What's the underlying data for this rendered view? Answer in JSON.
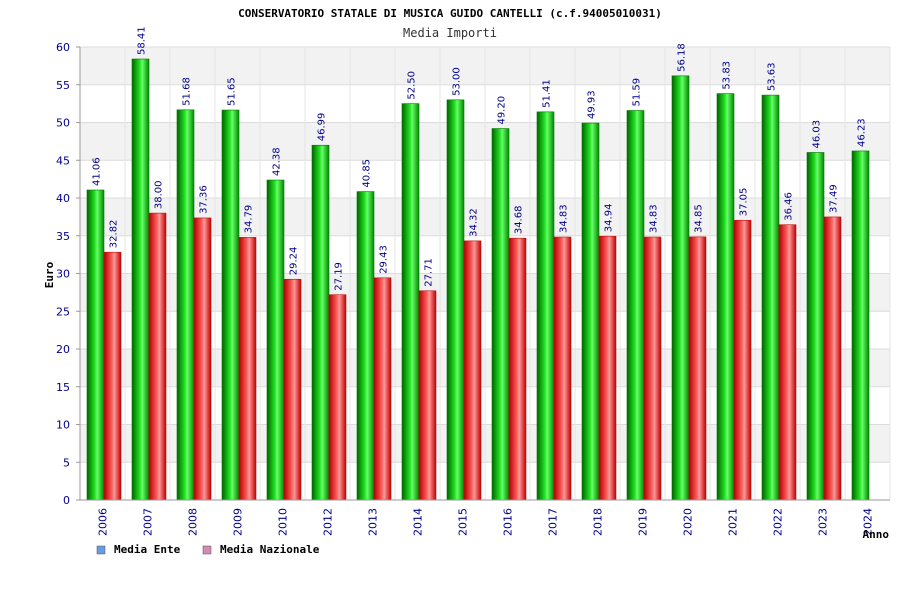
{
  "chart_data": {
    "type": "bar",
    "title": "CONSERVATORIO STATALE DI MUSICA GUIDO CANTELLI (c.f.94005010031)",
    "subtitle": "Media Importi",
    "ylabel": "Euro",
    "xlabel": "Anno",
    "ylim": [
      0,
      60
    ],
    "yticks": [
      "0",
      "5",
      "10",
      "15",
      "20",
      "25",
      "30",
      "35",
      "40",
      "45",
      "50",
      "55",
      "60"
    ],
    "categories": [
      "2006",
      "2007",
      "2008",
      "2009",
      "2010",
      "2012",
      "2013",
      "2014",
      "2015",
      "2016",
      "2017",
      "2018",
      "2019",
      "2020",
      "2021",
      "2022",
      "2023",
      "2024"
    ],
    "series": [
      {
        "name": "Media Ente",
        "color": "#00b000",
        "legend_color": "#6a9be0",
        "values": [
          41.06,
          58.41,
          51.68,
          51.65,
          42.38,
          46.99,
          40.85,
          52.5,
          53.0,
          49.2,
          51.41,
          49.93,
          51.59,
          56.18,
          53.83,
          53.63,
          46.03,
          46.23
        ],
        "labels": [
          "41.06",
          "58.41",
          "51.68",
          "51.65",
          "42.38",
          "46.99",
          "40.85",
          "52.50",
          "53.00",
          "49.20",
          "51.41",
          "49.93",
          "51.59",
          "56.18",
          "53.83",
          "53.63",
          "46.03",
          "46.23"
        ]
      },
      {
        "name": "Media Nazionale",
        "color": "#e81818",
        "legend_color": "#d58ab0",
        "values": [
          32.82,
          38.0,
          37.36,
          34.79,
          29.24,
          27.19,
          29.43,
          27.71,
          34.32,
          34.68,
          34.83,
          34.94,
          34.83,
          34.85,
          37.05,
          36.46,
          37.49,
          null
        ],
        "labels": [
          "32.82",
          "38.00",
          "37.36",
          "34.79",
          "29.24",
          "27.19",
          "29.43",
          "27.71",
          "34.32",
          "34.68",
          "34.83",
          "34.94",
          "34.83",
          "34.85",
          "37.05",
          "36.46",
          "37.49",
          null
        ]
      }
    ],
    "grid": true,
    "legend_position": "bottom-left"
  }
}
